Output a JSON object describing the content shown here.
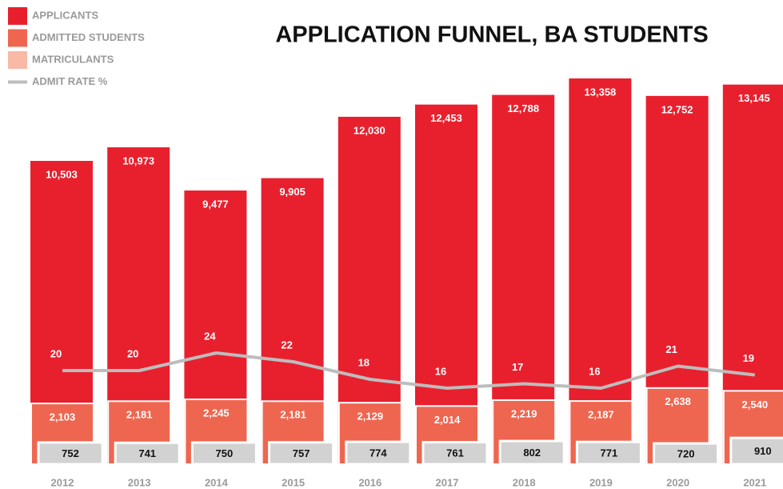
{
  "chart_data": {
    "type": "bar",
    "title": "APPLICATION FUNNEL, BA STUDENTS",
    "categories": [
      "2012",
      "2013",
      "2014",
      "2015",
      "2016",
      "2017",
      "2018",
      "2019",
      "2020",
      "2021"
    ],
    "series": [
      {
        "name": "APPLICANTS",
        "color": "#e8202e",
        "values": [
          10503,
          10973,
          9477,
          9905,
          12030,
          12453,
          12788,
          13358,
          12752,
          13145
        ],
        "value_labels": [
          "10,503",
          "10,973",
          "9,477",
          "9,905",
          "12,030",
          "12,453",
          "12,788",
          "13,358",
          "12,752",
          "13,145"
        ]
      },
      {
        "name": "ADMITTED STUDENTS",
        "color": "#ee6650",
        "values": [
          2103,
          2181,
          2245,
          2181,
          2129,
          2014,
          2219,
          2187,
          2638,
          2540
        ],
        "value_labels": [
          "2,103",
          "2,181",
          "2,245",
          "2,181",
          "2,129",
          "2,014",
          "2,219",
          "2,187",
          "2,638",
          "2,540"
        ]
      },
      {
        "name": "MATRICULANTS",
        "color": "#f8b9a5",
        "box_color": "#d2d2d2",
        "values": [
          752,
          741,
          750,
          757,
          774,
          761,
          802,
          771,
          720,
          910
        ]
      },
      {
        "name": "ADMIT RATE %",
        "color": "#bdbdbd",
        "axis": "y2",
        "values": [
          20,
          20,
          24,
          22,
          18,
          16,
          17,
          16,
          21,
          19
        ]
      }
    ]
  }
}
